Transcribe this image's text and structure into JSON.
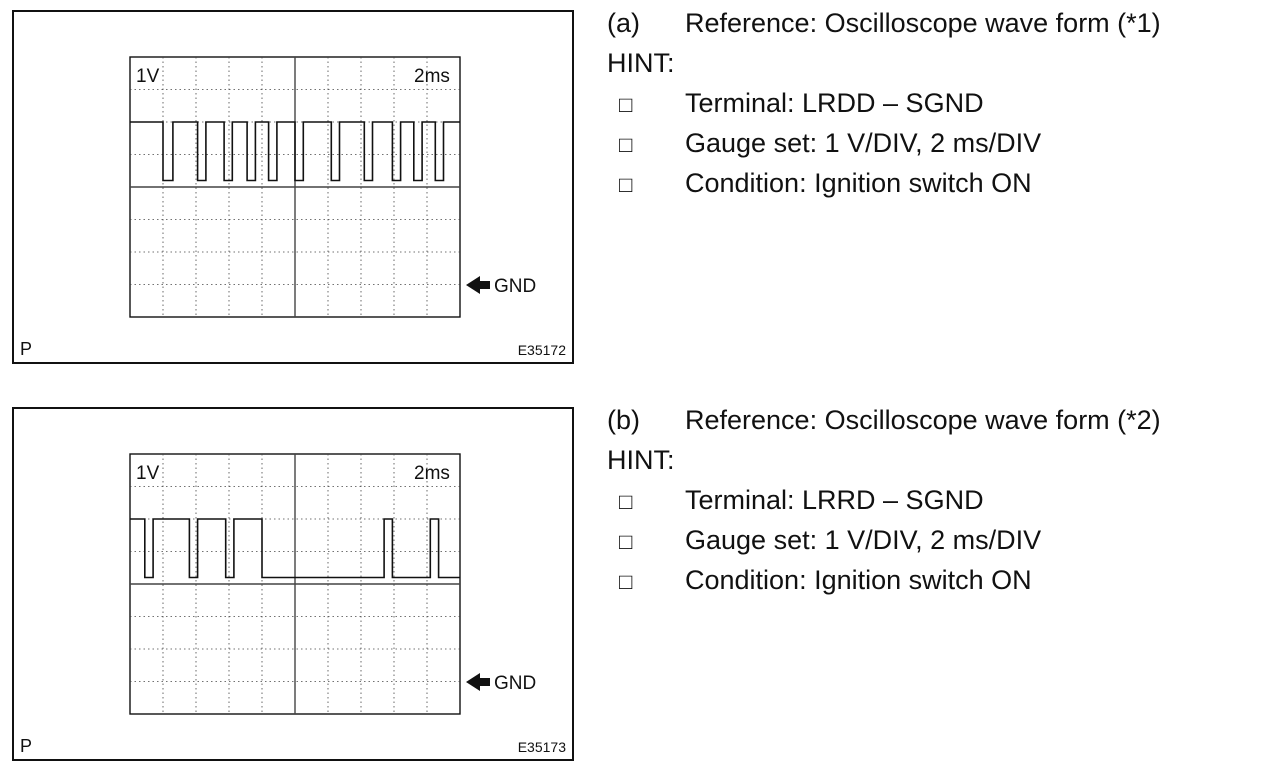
{
  "figures": [
    {
      "volt_label": "1V",
      "time_label": "2ms",
      "gnd_label": "GND",
      "corner_label": "P",
      "figure_id": "E35172",
      "wave_edges": [
        1.0,
        1.3,
        2.05,
        2.3,
        2.85,
        3.1,
        3.55,
        3.8,
        4.2,
        4.45,
        5.0,
        5.25,
        6.1,
        6.35,
        7.1,
        7.35,
        7.95,
        8.2,
        8.6,
        8.85,
        9.25,
        9.5
      ],
      "initial_level": "high"
    },
    {
      "volt_label": "1V",
      "time_label": "2ms",
      "gnd_label": "GND",
      "corner_label": "P",
      "figure_id": "E35173",
      "wave_edges": [
        0.45,
        0.7,
        1.8,
        2.05,
        2.9,
        3.15,
        4.0,
        7.7,
        7.95,
        9.1,
        9.35
      ],
      "initial_level": "high"
    }
  ],
  "texts": [
    {
      "tag": "(a)",
      "heading": "Reference: Oscilloscope wave form (*1)",
      "hint": "HINT:",
      "box": "□",
      "items": [
        "Terminal: LRDD – SGND",
        "Gauge set: 1 V/DIV, 2 ms/DIV",
        "Condition: Ignition switch ON"
      ]
    },
    {
      "tag": "(b)",
      "heading": "Reference: Oscilloscope wave form (*2)",
      "hint": "HINT:",
      "box": "□",
      "items": [
        "Terminal: LRRD – SGND",
        "Gauge set: 1 V/DIV, 2 ms/DIV",
        "Condition: Ignition switch ON"
      ]
    }
  ]
}
